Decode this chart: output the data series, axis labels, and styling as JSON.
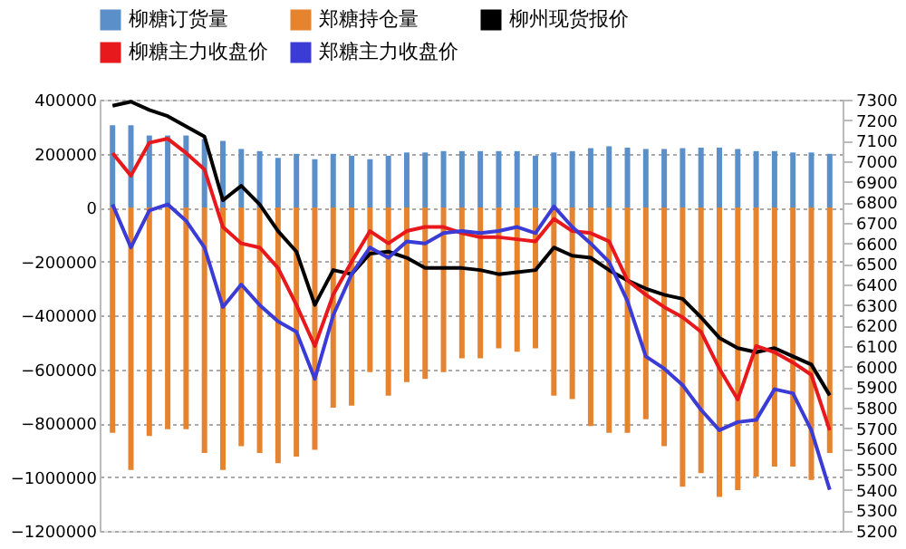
{
  "chart_data": {
    "type": "bar",
    "categories": [
      null,
      null,
      null,
      null,
      null,
      null,
      null,
      null,
      null,
      null,
      null,
      null,
      null,
      null,
      null,
      null,
      null,
      null,
      null,
      null,
      null,
      null,
      null,
      null,
      null,
      null,
      null,
      null,
      null,
      null,
      null,
      null,
      null,
      null,
      null,
      null,
      null,
      null,
      null,
      null
    ],
    "series": [
      {
        "name": "柳糖订货量",
        "color": "#5b8fc9",
        "values": [
          305000,
          305000,
          267000,
          267000,
          267000,
          254000,
          247000,
          217000,
          209000,
          184000,
          199000,
          179000,
          199000,
          192000,
          179000,
          192000,
          204000,
          204000,
          209000,
          209000,
          209000,
          209000,
          209000,
          192000,
          204000,
          209000,
          220000,
          227000,
          222000,
          217000,
          217000,
          220000,
          222000,
          222000,
          217000,
          209000,
          209000,
          204000,
          204000,
          199000
        ]
      },
      {
        "name": "郑糖持仓量",
        "color": "#e5832f",
        "values": [
          -836000,
          -974000,
          -848000,
          -823000,
          -823000,
          -911000,
          -974000,
          -886000,
          -911000,
          -949000,
          -924000,
          -899000,
          -743000,
          -735000,
          -611000,
          -698000,
          -648000,
          -636000,
          -611000,
          -560000,
          -560000,
          -523000,
          -535000,
          -523000,
          -698000,
          -711000,
          -811000,
          -836000,
          -836000,
          -786000,
          -886000,
          -1036000,
          -986000,
          -1074000,
          -1049000,
          -999000,
          -961000,
          -961000,
          -1011000,
          -911000
        ]
      },
      {
        "name": "柳州现货报价",
        "type": "line",
        "axis": "y2",
        "color": "#000000",
        "values": [
          7270,
          7290,
          7250,
          7220,
          7170,
          7120,
          6810,
          6880,
          6790,
          6660,
          6560,
          6300,
          6470,
          6450,
          6550,
          6560,
          6530,
          6480,
          6480,
          6480,
          6470,
          6450,
          6460,
          6470,
          6580,
          6540,
          6530,
          6470,
          6420,
          6380,
          6350,
          6330,
          6240,
          6140,
          6090,
          6070,
          6090,
          6050,
          6010,
          5860
        ]
      },
      {
        "name": "柳糖主力收盘价",
        "type": "line",
        "axis": "y2",
        "color": "#e8191c",
        "values": [
          7040,
          6930,
          7090,
          7110,
          7040,
          6960,
          6680,
          6600,
          6580,
          6480,
          6300,
          6100,
          6350,
          6510,
          6660,
          6600,
          6660,
          6680,
          6680,
          6650,
          6630,
          6630,
          6620,
          6610,
          6720,
          6660,
          6650,
          6610,
          6420,
          6350,
          6290,
          6240,
          6170,
          5990,
          5840,
          6100,
          6070,
          6020,
          5960,
          5690
        ]
      },
      {
        "name": "郑糖主力收盘价",
        "type": "line",
        "axis": "y2",
        "color": "#3b3bd6",
        "values": [
          6790,
          6580,
          6760,
          6790,
          6710,
          6580,
          6290,
          6400,
          6300,
          6220,
          6170,
          5940,
          6250,
          6450,
          6580,
          6530,
          6610,
          6600,
          6650,
          6660,
          6650,
          6660,
          6680,
          6650,
          6780,
          6680,
          6600,
          6510,
          6320,
          6050,
          5990,
          5910,
          5790,
          5690,
          5730,
          5740,
          5890,
          5870,
          5690,
          5400
        ]
      }
    ],
    "ylim": [
      -1200000,
      400000
    ],
    "yticks": [
      -1200000,
      -1000000,
      -800000,
      -600000,
      -400000,
      -200000,
      0,
      200000,
      400000
    ],
    "y2lim": [
      5200,
      7300
    ],
    "y2ticks": [
      5200,
      5300,
      5400,
      5500,
      5600,
      5700,
      5800,
      5900,
      6000,
      6100,
      6200,
      6300,
      6400,
      6500,
      6600,
      6700,
      6800,
      6900,
      7000,
      7100,
      7200,
      7300
    ],
    "grid": "y",
    "legend": "top",
    "stacked": true
  }
}
